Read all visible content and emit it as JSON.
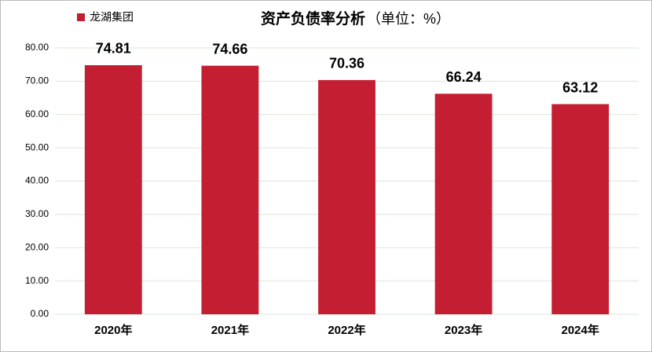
{
  "chart_data": {
    "type": "bar",
    "title": "资产负债率分析",
    "subtitle": "（单位：%）",
    "categories": [
      "2020年",
      "2021年",
      "2022年",
      "2023年",
      "2024年"
    ],
    "series": [
      {
        "name": "龙湖集团",
        "color": "#c41e32",
        "values": [
          74.81,
          74.66,
          70.36,
          66.24,
          63.12
        ]
      }
    ],
    "ylim": [
      0,
      80
    ],
    "yticks": [
      {
        "value": 0,
        "label": "0.00"
      },
      {
        "value": 10,
        "label": "10.00"
      },
      {
        "value": 20,
        "label": "20.00"
      },
      {
        "value": 30,
        "label": "30.00"
      },
      {
        "value": 40,
        "label": "40.00"
      },
      {
        "value": 50,
        "label": "50.00"
      },
      {
        "value": 60,
        "label": "60.00"
      },
      {
        "value": 70,
        "label": "70.00"
      },
      {
        "value": 80,
        "label": "80.00"
      }
    ],
    "grid": true
  }
}
